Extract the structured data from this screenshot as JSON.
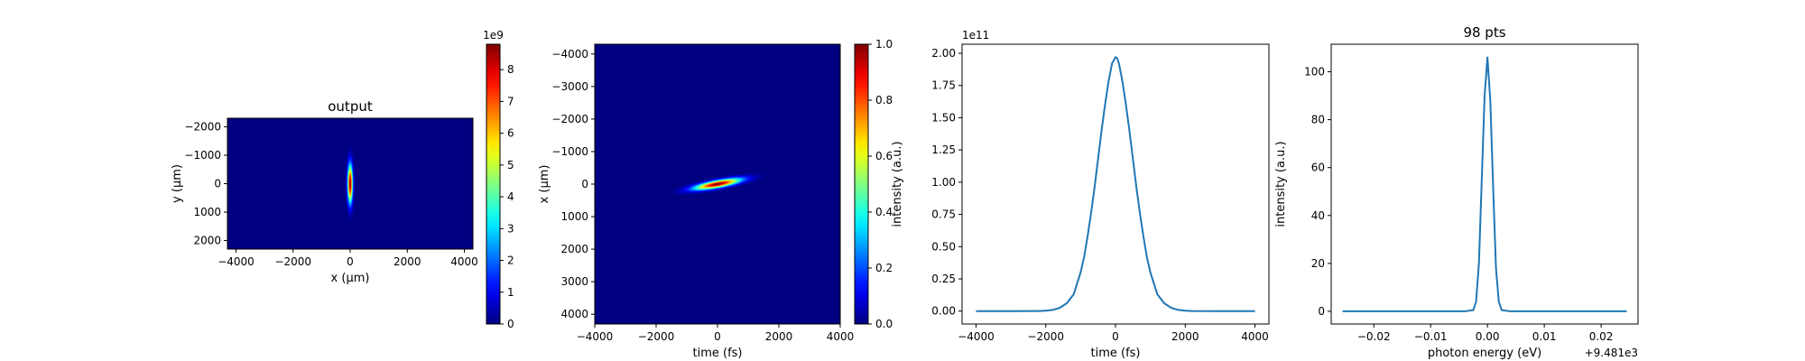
{
  "chart_data": [
    {
      "type": "heatmap",
      "title": "output",
      "xlabel": "x (μm)",
      "ylabel": "y (μm)",
      "xlim": [
        -4300,
        4300
      ],
      "ylim_top": -2300,
      "ylim_bottom": 2300,
      "xticks": [
        -4000,
        -2000,
        0,
        2000,
        4000
      ],
      "xticklabels": [
        "−4000",
        "−2000",
        "0",
        "2000",
        "4000"
      ],
      "yticks": [
        -2000,
        -1000,
        0,
        1000,
        2000
      ],
      "yticklabels": [
        "−2000",
        "−1000",
        "0",
        "1000",
        "2000"
      ],
      "colormap": "jet",
      "spot": {
        "x0": 0,
        "y0": 0,
        "sigma_x": 60,
        "sigma_y": 450
      },
      "colorbar": {
        "vmin": 0,
        "vmax": 8.8,
        "ticks": [
          0,
          1,
          2,
          3,
          4,
          5,
          6,
          7,
          8
        ],
        "ticklabels": [
          "0",
          "1",
          "2",
          "3",
          "4",
          "5",
          "6",
          "7",
          "8"
        ],
        "offset_label": "1e9"
      },
      "grid": false
    },
    {
      "type": "heatmap",
      "title": "",
      "xlabel": "time (fs)",
      "ylabel": "x (μm)",
      "xlim": [
        -4000,
        4000
      ],
      "ylim_top": -4300,
      "ylim_bottom": 4300,
      "xticks": [
        -4000,
        -2000,
        0,
        2000,
        4000
      ],
      "xticklabels": [
        "−4000",
        "−2000",
        "0",
        "2000",
        "4000"
      ],
      "yticks": [
        -4000,
        -3000,
        -2000,
        -1000,
        0,
        1000,
        2000,
        3000,
        4000
      ],
      "yticklabels": [
        "−4000",
        "−3000",
        "−2000",
        "−1000",
        "0",
        "1000",
        "2000",
        "3000",
        "4000"
      ],
      "colormap": "jet",
      "spot": {
        "x0": 0,
        "y0": 0,
        "sigma_x": 520,
        "sigma_y": 75,
        "tilt": -0.018
      },
      "colorbar": {
        "vmin": 0,
        "vmax": 1,
        "ticks": [
          0,
          0.2,
          0.4,
          0.6,
          0.8,
          1.0
        ],
        "ticklabels": [
          "0.0",
          "0.2",
          "0.4",
          "0.6",
          "0.8",
          "1.0"
        ],
        "offset_label": ""
      },
      "grid": false
    },
    {
      "type": "line",
      "title": "",
      "xlabel": "time (fs)",
      "ylabel": "intensity (a.u.)",
      "offset_label": "1e11",
      "xlim": [
        -4400,
        4400
      ],
      "ylim": [
        -0.1,
        2.07
      ],
      "xticks": [
        -4000,
        -2000,
        0,
        2000,
        4000
      ],
      "xticklabels": [
        "−4000",
        "−2000",
        "0",
        "2000",
        "4000"
      ],
      "yticks": [
        0,
        0.25,
        0.5,
        0.75,
        1.0,
        1.25,
        1.5,
        1.75,
        2.0
      ],
      "yticklabels": [
        "0.00",
        "0.25",
        "0.50",
        "0.75",
        "1.00",
        "1.25",
        "1.50",
        "1.75",
        "2.00"
      ],
      "series": [
        {
          "x": [
            -4000,
            -3000,
            -2200,
            -2000,
            -1800,
            -1600,
            -1400,
            -1200,
            -1000,
            -900,
            -800,
            -700,
            -600,
            -500,
            -400,
            -300,
            -200,
            -100,
            0,
            50,
            100,
            200,
            300,
            400,
            500,
            600,
            700,
            800,
            900,
            1000,
            1200,
            1400,
            1600,
            1800,
            2000,
            2200,
            3000,
            4000
          ],
          "y": [
            0,
            0,
            0.001,
            0.003,
            0.009,
            0.025,
            0.06,
            0.13,
            0.3,
            0.42,
            0.58,
            0.76,
            0.96,
            1.18,
            1.4,
            1.6,
            1.78,
            1.92,
            1.97,
            1.96,
            1.92,
            1.78,
            1.6,
            1.4,
            1.18,
            0.96,
            0.76,
            0.58,
            0.42,
            0.3,
            0.13,
            0.06,
            0.025,
            0.009,
            0.003,
            0.001,
            0,
            0
          ],
          "color": "#1f77b4"
        }
      ],
      "grid": false
    },
    {
      "type": "line",
      "title": "98 pts",
      "xlabel": "photon energy (eV)",
      "ylabel": "intensity (a.u.)",
      "offset_label": "+9.481e3",
      "xlim": [
        -0.0275,
        0.0265
      ],
      "ylim": [
        -5.3,
        111.5
      ],
      "xticks": [
        -0.02,
        -0.01,
        0.0,
        0.01,
        0.02
      ],
      "xticklabels": [
        "−0.02",
        "−0.01",
        "0.00",
        "0.01",
        "0.02"
      ],
      "yticks": [
        0,
        20,
        40,
        60,
        80,
        100
      ],
      "yticklabels": [
        "0",
        "20",
        "40",
        "60",
        "80",
        "100"
      ],
      "series": [
        {
          "x": [
            -0.0255,
            -0.004,
            -0.0025,
            -0.002,
            -0.0015,
            -0.001,
            -0.0005,
            0.0,
            0.0005,
            0.001,
            0.0015,
            0.002,
            0.0025,
            0.004,
            0.0245
          ],
          "y": [
            0,
            0,
            0.5,
            4,
            20,
            55,
            90,
            106,
            88,
            52,
            18,
            4,
            0.5,
            0,
            0
          ],
          "color": "#1f77b4"
        }
      ],
      "grid": false
    }
  ]
}
